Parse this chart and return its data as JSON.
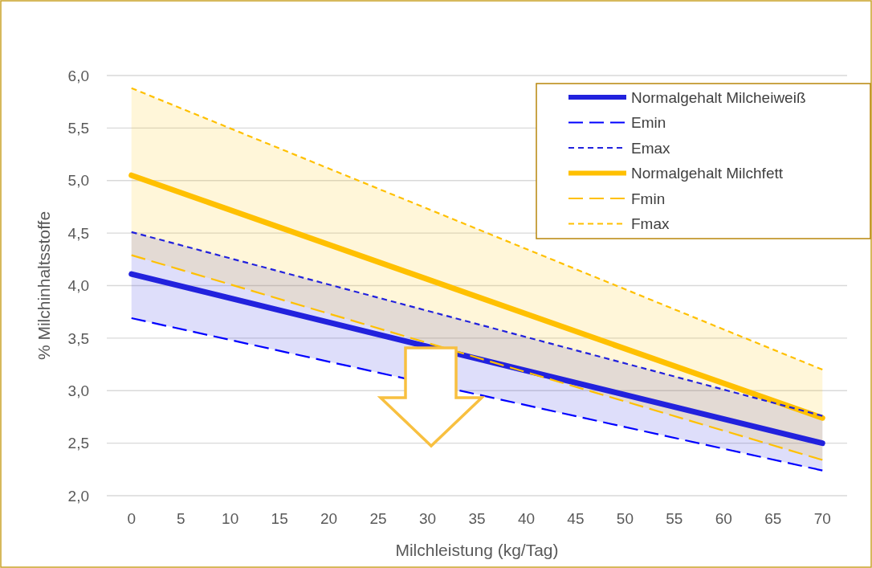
{
  "chart_data": {
    "type": "line",
    "xlabel": "Milchleistung (kg/Tag)",
    "ylabel": "% Milchinhaltsstoffe",
    "x": [
      0,
      70
    ],
    "xlim": [
      -2.5,
      72.5
    ],
    "xticks": [
      0,
      5,
      10,
      15,
      20,
      25,
      30,
      35,
      40,
      45,
      50,
      55,
      60,
      65,
      70
    ],
    "ylim": [
      2,
      6
    ],
    "yticks": [
      {
        "value": 2,
        "label": "2,0"
      },
      {
        "value": 2.5,
        "label": "2,5"
      },
      {
        "value": 3,
        "label": "3,0"
      },
      {
        "value": 3.5,
        "label": "3,5"
      },
      {
        "value": 4,
        "label": "4,0"
      },
      {
        "value": 4.5,
        "label": "4,5"
      },
      {
        "value": 5,
        "label": "5,0"
      },
      {
        "value": 5.5,
        "label": "5,5"
      },
      {
        "value": 6,
        "label": "6,0"
      }
    ],
    "grid": "y",
    "legend": "top right",
    "marker": "none",
    "series": [
      {
        "name": "Normalgehalt Milcheiweiß",
        "color": "#2222dd",
        "values": [
          4.11,
          2.5
        ],
        "lower": [
          3.69,
          2.24
        ],
        "upper": [
          4.51,
          2.76
        ],
        "line_style": "solid"
      },
      {
        "name": "Emin",
        "color": "#0000ff",
        "values": [
          3.69,
          2.24
        ],
        "line_style": "dashed"
      },
      {
        "name": "Emax",
        "color": "#2222dd",
        "values": [
          4.51,
          2.76
        ],
        "line_style": "dotted"
      },
      {
        "name": "Normalgehalt Milchfett",
        "color": "#ffc000",
        "values": [
          5.05,
          2.74
        ],
        "lower": [
          4.29,
          2.34
        ],
        "upper": [
          5.88,
          3.2
        ],
        "line_style": "solid"
      },
      {
        "name": "Fmin",
        "color": "#ffc000",
        "values": [
          4.29,
          2.34
        ],
        "line_style": "dashed"
      },
      {
        "name": "Fmax",
        "color": "#ffc000",
        "values": [
          5.88,
          3.2
        ],
        "line_style": "dotted"
      }
    ]
  }
}
